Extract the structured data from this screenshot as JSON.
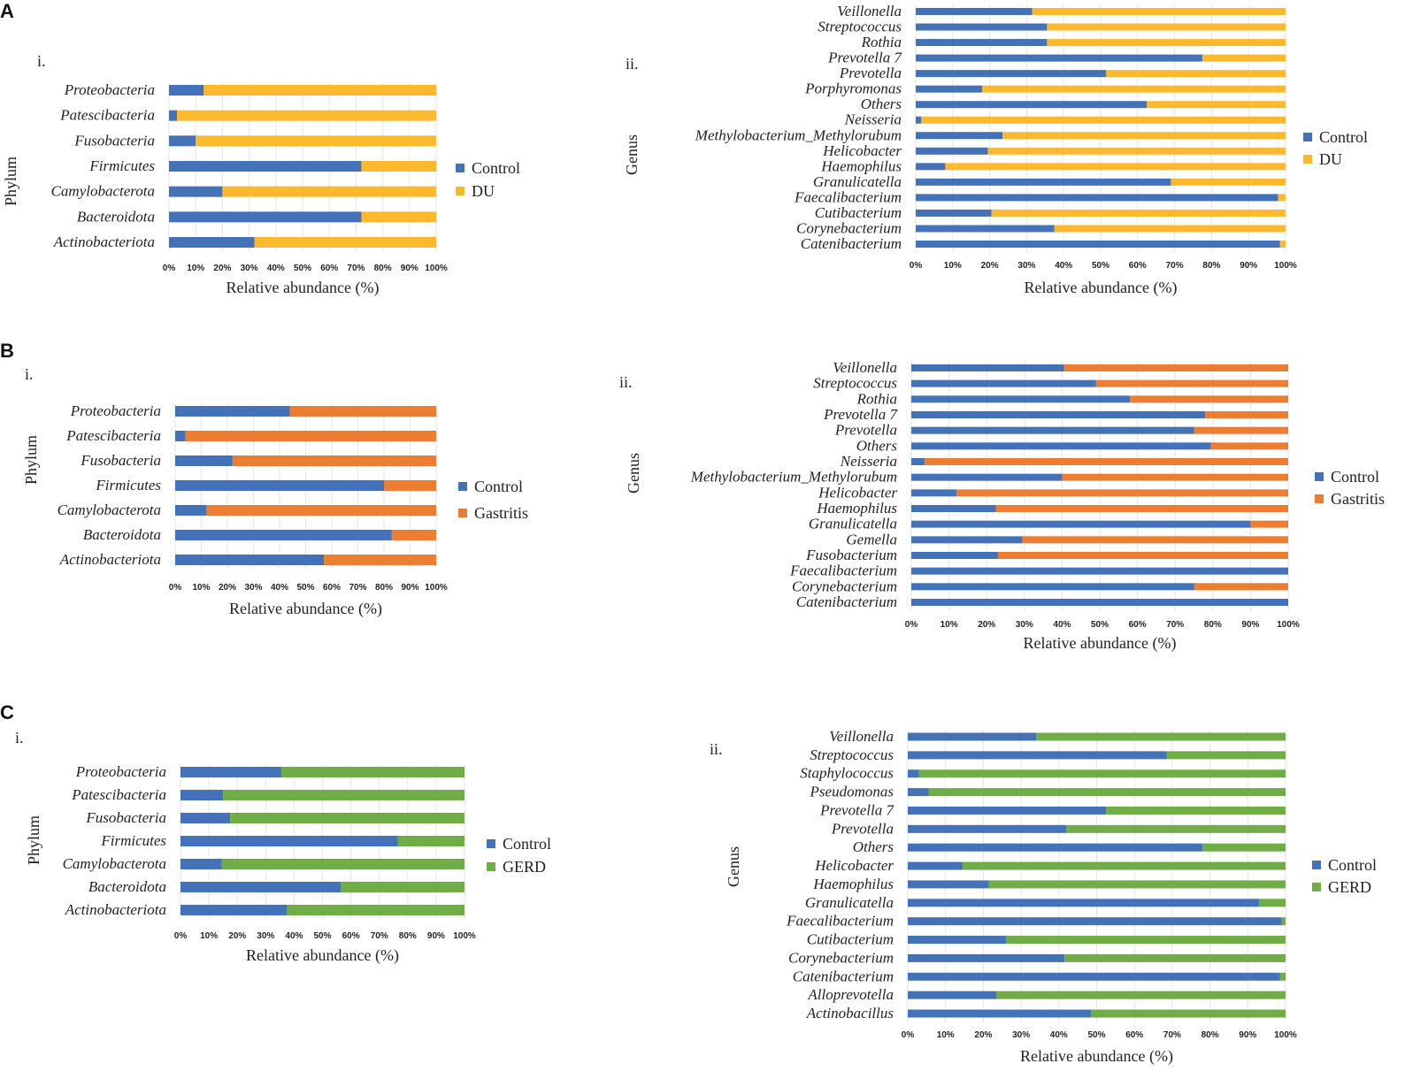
{
  "colors": {
    "control": "#4472B8",
    "DU": "#FDB92E",
    "Gastritis": "#ED7D31",
    "GERD": "#70AD47",
    "grid": "#E6E6E6"
  },
  "panels": [
    {
      "letter": "A"
    },
    {
      "letter": "B"
    },
    {
      "letter": "C"
    }
  ],
  "chart_data": [
    {
      "panel": "A",
      "sub": "i.",
      "type": "bar",
      "orientation": "horizontal",
      "stacked": "100%",
      "xlabel": "Relative abundance  (%)",
      "ylabel": "Phylum",
      "xlim": [
        0,
        100
      ],
      "grid": true,
      "legend": "right",
      "ticks": [
        "0%",
        "10%",
        "20%",
        "30%",
        "40%",
        "50%",
        "60%",
        "70%",
        "80%",
        "90%",
        "100%"
      ],
      "categories": [
        "Proteobacteria",
        "Patescibacteria",
        "Fusobacteria",
        "Firmicutes",
        "Camylobacterota",
        "Bacteroidota",
        "Actinobacteriota"
      ],
      "series": [
        {
          "name": "Control",
          "color": "#4472B8",
          "values": [
            13,
            3,
            10,
            72,
            20,
            72,
            32
          ]
        },
        {
          "name": "DU",
          "color": "#FDB92E",
          "values": [
            87,
            97,
            90,
            28,
            80,
            28,
            68
          ]
        }
      ]
    },
    {
      "panel": "A",
      "sub": "ii.",
      "type": "bar",
      "orientation": "horizontal",
      "stacked": "100%",
      "xlabel": "Relative abundance  (%)",
      "ylabel": "Genus",
      "xlim": [
        0,
        100
      ],
      "grid": true,
      "legend": "right",
      "ticks": [
        "0%",
        "10%",
        "20%",
        "30%",
        "40%",
        "50%",
        "60%",
        "70%",
        "80%",
        "90%",
        "100%"
      ],
      "categories": [
        "Veillonella",
        "Streptococcus",
        "Rothia",
        "Prevotella  7",
        "Prevotella",
        "Porphyromonas",
        "Others",
        "Neisseria",
        "Methylobacterium_Methylorubum",
        "Helicobacter",
        "Haemophilus",
        "Granulicatella",
        "Faecalibacterium",
        "Cutibacterium",
        "Corynebacterium",
        "Catenibacterium"
      ],
      "series": [
        {
          "name": "Control",
          "color": "#4472B8",
          "values": [
            31.5,
            35.5,
            35.5,
            77.5,
            51.5,
            18,
            62.5,
            1.5,
            23.5,
            19.5,
            8,
            69,
            98,
            20.5,
            37.5,
            98.5
          ]
        },
        {
          "name": "DU",
          "color": "#FDB92E",
          "values": [
            68.5,
            64.5,
            64.5,
            22.5,
            48.5,
            82,
            37.5,
            98.5,
            76.5,
            80.5,
            92,
            31,
            2,
            79.5,
            62.5,
            1.5
          ]
        }
      ]
    },
    {
      "panel": "B",
      "sub": "i.",
      "type": "bar",
      "orientation": "horizontal",
      "stacked": "100%",
      "xlabel": "Relative abundance  (%)",
      "ylabel": "Phylum",
      "xlim": [
        0,
        100
      ],
      "grid": true,
      "legend": "right",
      "ticks": [
        "0%",
        "10%",
        "20%",
        "30%",
        "40%",
        "50%",
        "60%",
        "70%",
        "80%",
        "90%",
        "100%"
      ],
      "categories": [
        "Proteobacteria",
        "Patescibacteria",
        "Fusobacteria",
        "Firmicutes",
        "Camylobacterota",
        "Bacteroidota",
        "Actinobacteriota"
      ],
      "series": [
        {
          "name": "Control",
          "color": "#4472B8",
          "values": [
            44,
            4,
            22,
            80,
            12,
            83,
            57
          ]
        },
        {
          "name": "Gastritis",
          "color": "#ED7D31",
          "values": [
            56,
            96,
            78,
            20,
            88,
            17,
            43
          ]
        }
      ]
    },
    {
      "panel": "B",
      "sub": "ii.",
      "type": "bar",
      "orientation": "horizontal",
      "stacked": "100%",
      "xlabel": "Relative abundance  (%)",
      "ylabel": "Genus",
      "xlim": [
        0,
        100
      ],
      "grid": true,
      "legend": "right",
      "ticks": [
        "0%",
        "10%",
        "20%",
        "30%",
        "40%",
        "50%",
        "60%",
        "70%",
        "80%",
        "90%",
        "100%"
      ],
      "categories": [
        "Veillonella",
        "Streptococcus",
        "Rothia",
        "Prevotella 7",
        "Prevotella",
        "Others",
        "Neisseria",
        "Methylobacterium_Methylorubum",
        "Helicobacter",
        "Haemophilus",
        "Granulicatella",
        "Gemella",
        "Fusobacterium",
        "Faecalibacterium",
        "Corynebacterium",
        "Catenibacterium"
      ],
      "series": [
        {
          "name": "Control",
          "color": "#4472B8",
          "values": [
            40.5,
            49,
            58,
            78,
            75,
            79.5,
            3.5,
            40,
            12,
            22.5,
            90,
            29.5,
            23,
            100,
            75,
            100
          ]
        },
        {
          "name": "Gastritis",
          "color": "#ED7D31",
          "values": [
            59.5,
            51,
            42,
            22,
            25,
            20.5,
            96.5,
            60,
            88,
            77.5,
            10,
            70.5,
            77,
            0,
            25,
            0
          ]
        }
      ]
    },
    {
      "panel": "C",
      "sub": "i.",
      "type": "bar",
      "orientation": "horizontal",
      "stacked": "100%",
      "xlabel": "Relative abundance (%)",
      "ylabel": "Phylum",
      "xlim": [
        0,
        100
      ],
      "grid": true,
      "legend": "right",
      "ticks": [
        "0%",
        "10%",
        "20%",
        "30%",
        "40%",
        "50%",
        "60%",
        "70%",
        "80%",
        "90%",
        "100%"
      ],
      "categories": [
        "Proteobacteria",
        "Patescibacteria",
        "Fusobacteria",
        "Firmicutes",
        "Camylobacterota",
        "Bacteroidota",
        "Actinobacteriota"
      ],
      "series": [
        {
          "name": "Control",
          "color": "#4472B8",
          "values": [
            35.5,
            15,
            17.5,
            76.5,
            14.5,
            56.5,
            37.5
          ]
        },
        {
          "name": "GERD",
          "color": "#70AD47",
          "values": [
            64.5,
            85,
            82.5,
            23.5,
            85.5,
            43.5,
            62.5
          ]
        }
      ]
    },
    {
      "panel": "C",
      "sub": "ii.",
      "type": "bar",
      "orientation": "horizontal",
      "stacked": "100%",
      "xlabel": "Relative abundance  (%)",
      "ylabel": "Genus",
      "xlim": [
        0,
        100
      ],
      "grid": true,
      "legend": "right",
      "ticks": [
        "0%",
        "10%",
        "20%",
        "30%",
        "40%",
        "50%",
        "60%",
        "70%",
        "80%",
        "90%",
        "100%"
      ],
      "categories": [
        "Veillonella",
        "Streptococcus",
        "Staphylococcus",
        "Pseudomonas",
        "Prevotella 7",
        "Prevotella",
        "Others",
        "Helicobacter",
        "Haemophilus",
        "Granulicatella",
        "Faecalibacterium",
        "Cutibacterium",
        "Corynebacterium",
        "Catenibacterium",
        "Alloprevotella",
        "Actinobacillus"
      ],
      "series": [
        {
          "name": "Control",
          "color": "#4472B8",
          "values": [
            34,
            68.5,
            3,
            5.5,
            52.5,
            42,
            78,
            14.5,
            21.5,
            93,
            99,
            26,
            41.5,
            98.5,
            23.5,
            48.5
          ]
        },
        {
          "name": "GERD",
          "color": "#70AD47",
          "values": [
            66,
            31.5,
            97,
            94.5,
            47.5,
            58,
            22,
            85.5,
            78.5,
            7,
            1,
            74,
            58.5,
            1.5,
            76.5,
            51.5
          ]
        }
      ]
    }
  ]
}
